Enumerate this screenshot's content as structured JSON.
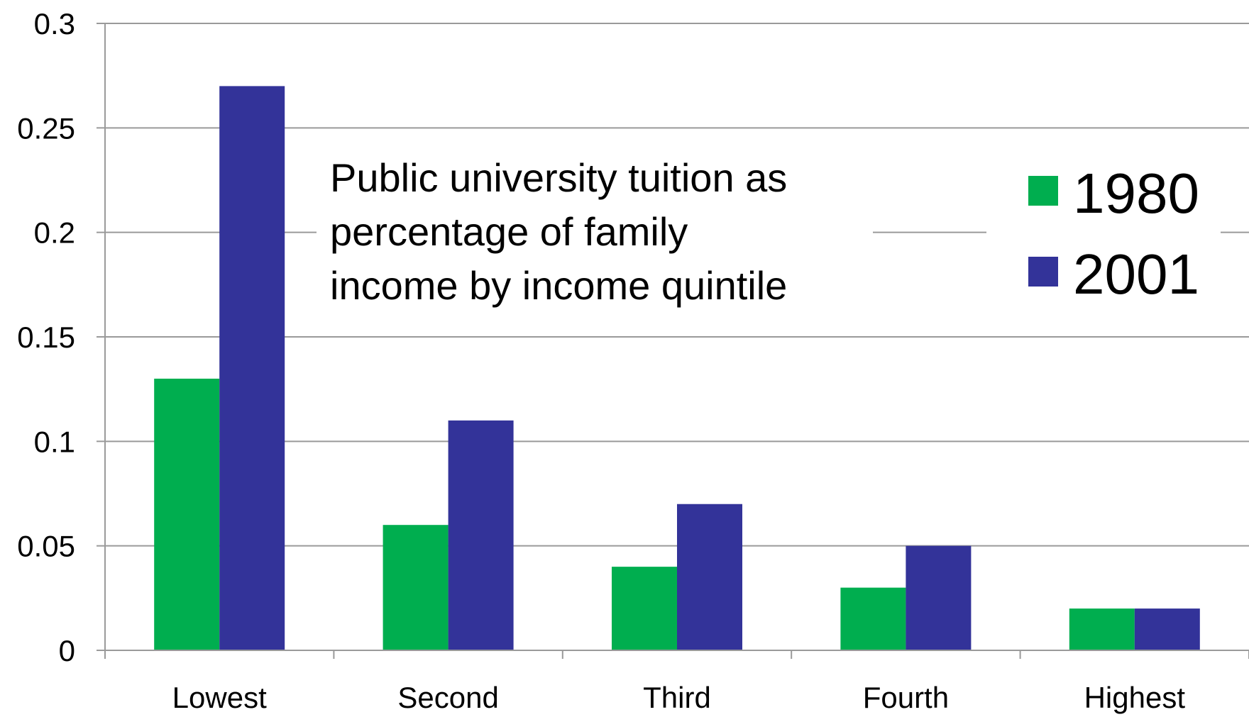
{
  "chart_data": {
    "type": "bar",
    "title": "",
    "xlabel": "",
    "ylabel": "",
    "categories": [
      "Lowest",
      "Second",
      "Third",
      "Fourth",
      "Highest"
    ],
    "series": [
      {
        "name": "1980",
        "values": [
          0.13,
          0.06,
          0.04,
          0.03,
          0.02
        ],
        "color": "#00AE4F"
      },
      {
        "name": "2001",
        "values": [
          0.27,
          0.11,
          0.07,
          0.05,
          0.02
        ],
        "color": "#333399"
      }
    ],
    "ylim": [
      0,
      0.3
    ],
    "yticks": [
      "0",
      "0.05",
      "0.1",
      "0.15",
      "0.2",
      "0.25",
      "0.3"
    ],
    "grid": true,
    "legend": "top-right",
    "annotation": [
      "Public university tuition as",
      "percentage of family",
      "income by income quintile"
    ]
  }
}
